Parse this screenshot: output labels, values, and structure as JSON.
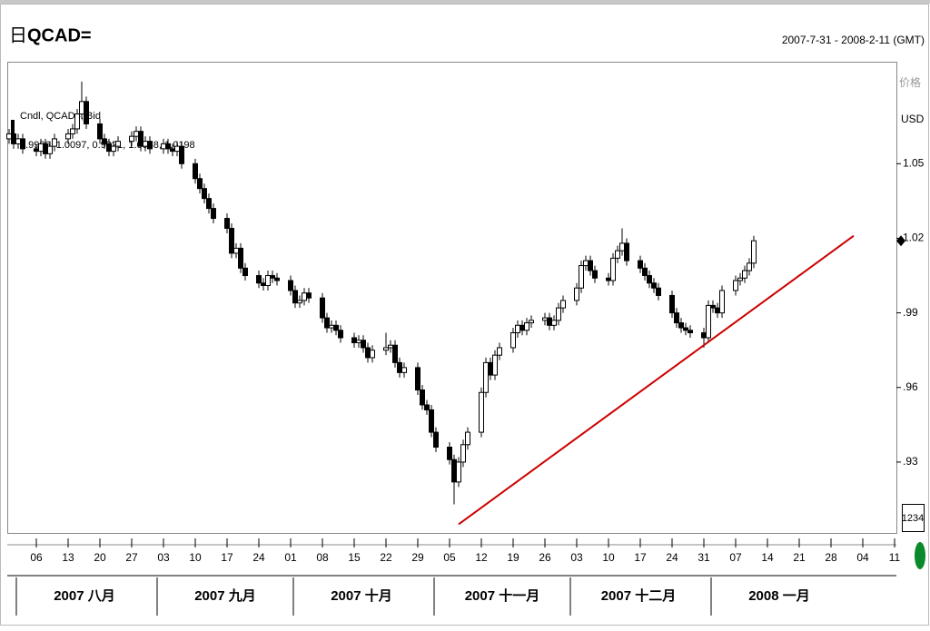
{
  "chart_data": {
    "type": "candlestick",
    "title": "QCAD=",
    "title_icon": "日",
    "date_range": "2007-7-31 - 2008-2-11 (GMT)",
    "legend_title": "Cndl, QCAD=, Bid",
    "legend_values": "0.9986, 1.0097, 0.9921, 1.0058, 1.0198",
    "y_axis_label": "价格",
    "y_unit": "USD",
    "scale_button": "1234",
    "up_color": "#ffffff",
    "down_color": "#000000",
    "xlim": [
      "2007-07-31",
      "2008-02-11"
    ],
    "ylim": [
      0.9015,
      1.091
    ],
    "yticks": [
      1.05,
      1.02,
      {
        "value": 0.99,
        "label": ".99"
      },
      {
        "value": 0.96,
        "label": ".96"
      },
      {
        "value": 0.93,
        "label": ".93"
      }
    ],
    "xticks": [
      {
        "value": "2007-08-06",
        "label": "06"
      },
      {
        "value": "2007-08-13",
        "label": "13"
      },
      {
        "value": "2007-08-20",
        "label": "20"
      },
      {
        "value": "2007-08-27",
        "label": "27"
      },
      {
        "value": "2007-09-03",
        "label": "03"
      },
      {
        "value": "2007-09-10",
        "label": "10"
      },
      {
        "value": "2007-09-17",
        "label": "17"
      },
      {
        "value": "2007-09-24",
        "label": "24"
      },
      {
        "value": "2007-10-01",
        "label": "01"
      },
      {
        "value": "2007-10-08",
        "label": "08"
      },
      {
        "value": "2007-10-15",
        "label": "15"
      },
      {
        "value": "2007-10-22",
        "label": "22"
      },
      {
        "value": "2007-10-29",
        "label": "29"
      },
      {
        "value": "2007-11-05",
        "label": "05"
      },
      {
        "value": "2007-11-12",
        "label": "12"
      },
      {
        "value": "2007-11-19",
        "label": "19"
      },
      {
        "value": "2007-11-26",
        "label": "26"
      },
      {
        "value": "2007-12-03",
        "label": "03"
      },
      {
        "value": "2007-12-10",
        "label": "10"
      },
      {
        "value": "2007-12-17",
        "label": "17"
      },
      {
        "value": "2007-12-24",
        "label": "24"
      },
      {
        "value": "2007-12-31",
        "label": "31"
      },
      {
        "value": "2008-01-07",
        "label": "07"
      },
      {
        "value": "2008-01-14",
        "label": "14"
      },
      {
        "value": "2008-01-21",
        "label": "21"
      },
      {
        "value": "2008-01-28",
        "label": "28"
      },
      {
        "value": "2008-02-04",
        "label": "04"
      },
      {
        "value": "2008-02-11",
        "label": "11"
      }
    ],
    "months": [
      {
        "value": "2007-08-01",
        "label": "2007 八月"
      },
      {
        "value": "2007-09-01",
        "label": "2007 九月"
      },
      {
        "value": "2007-10-01",
        "label": "2007 十月"
      },
      {
        "value": "2007-11-01",
        "label": "2007 十一月"
      },
      {
        "value": "2007-12-01",
        "label": "2007 十二月"
      },
      {
        "value": "2008-01-01",
        "label": "2008 一月"
      }
    ],
    "trendline": {
      "x": [
        "2007-11-07",
        "2008-02-02"
      ],
      "y": [
        0.905,
        1.021
      ],
      "color": "#cc0000"
    },
    "x": [
      "2007-07-31",
      "2007-08-01",
      "2007-08-02",
      "2007-08-03",
      "2007-08-06",
      "2007-08-07",
      "2007-08-08",
      "2007-08-09",
      "2007-08-10",
      "2007-08-13",
      "2007-08-14",
      "2007-08-15",
      "2007-08-16",
      "2007-08-17",
      "2007-08-20",
      "2007-08-21",
      "2007-08-22",
      "2007-08-23",
      "2007-08-24",
      "2007-08-27",
      "2007-08-28",
      "2007-08-29",
      "2007-08-30",
      "2007-08-31",
      "2007-09-03",
      "2007-09-04",
      "2007-09-05",
      "2007-09-06",
      "2007-09-07",
      "2007-09-10",
      "2007-09-11",
      "2007-09-12",
      "2007-09-13",
      "2007-09-14",
      "2007-09-17",
      "2007-09-18",
      "2007-09-19",
      "2007-09-20",
      "2007-09-21",
      "2007-09-24",
      "2007-09-25",
      "2007-09-26",
      "2007-09-27",
      "2007-09-28",
      "2007-10-01",
      "2007-10-02",
      "2007-10-03",
      "2007-10-04",
      "2007-10-05",
      "2007-10-08",
      "2007-10-09",
      "2007-10-10",
      "2007-10-11",
      "2007-10-12",
      "2007-10-15",
      "2007-10-16",
      "2007-10-17",
      "2007-10-18",
      "2007-10-19",
      "2007-10-22",
      "2007-10-23",
      "2007-10-24",
      "2007-10-25",
      "2007-10-26",
      "2007-10-29",
      "2007-10-30",
      "2007-10-31",
      "2007-11-01",
      "2007-11-02",
      "2007-11-05",
      "2007-11-06",
      "2007-11-07",
      "2007-11-08",
      "2007-11-09",
      "2007-11-12",
      "2007-11-13",
      "2007-11-14",
      "2007-11-15",
      "2007-11-16",
      "2007-11-19",
      "2007-11-20",
      "2007-11-21",
      "2007-11-22",
      "2007-11-23",
      "2007-11-26",
      "2007-11-27",
      "2007-11-28",
      "2007-11-29",
      "2007-11-30",
      "2007-12-03",
      "2007-12-04",
      "2007-12-05",
      "2007-12-06",
      "2007-12-07",
      "2007-12-10",
      "2007-12-11",
      "2007-12-12",
      "2007-12-13",
      "2007-12-14",
      "2007-12-17",
      "2007-12-18",
      "2007-12-19",
      "2007-12-20",
      "2007-12-21",
      "2007-12-24",
      "2007-12-25",
      "2007-12-26",
      "2007-12-27",
      "2007-12-28",
      "2007-12-31",
      "2008-01-01",
      "2008-01-02",
      "2008-01-03",
      "2008-01-04",
      "2008-01-07",
      "2008-01-08",
      "2008-01-09",
      "2008-01-10",
      "2008-01-11"
    ],
    "open": [
      1.06,
      1.062,
      1.058,
      1.06,
      1.056,
      1.055,
      1.058,
      1.054,
      1.057,
      1.06,
      1.062,
      1.064,
      1.07,
      1.075,
      1.066,
      1.06,
      1.058,
      1.055,
      1.057,
      1.059,
      1.061,
      1.063,
      1.057,
      1.059,
      1.056,
      1.058,
      1.056,
      1.055,
      1.057,
      1.05,
      1.044,
      1.04,
      1.036,
      1.032,
      1.028,
      1.024,
      1.014,
      1.016,
      1.008,
      1.005,
      1.002,
      1.001,
      1.005,
      1.004,
      1.003,
      0.999,
      0.994,
      0.995,
      0.998,
      0.996,
      0.988,
      0.984,
      0.985,
      0.983,
      0.98,
      0.978,
      0.979,
      0.976,
      0.972,
      0.975,
      0.976,
      0.977,
      0.97,
      0.966,
      0.968,
      0.959,
      0.953,
      0.951,
      0.942,
      0.936,
      0.931,
      0.922,
      0.93,
      0.937,
      0.942,
      0.958,
      0.97,
      0.965,
      0.973,
      0.976,
      0.982,
      0.985,
      0.983,
      0.986,
      0.987,
      0.988,
      0.985,
      0.987,
      0.992,
      0.995,
      1.0,
      1.009,
      1.011,
      1.007,
      1.004,
      1.003,
      1.012,
      1.015,
      1.018,
      1.011,
      1.008,
      1.005,
      1.002,
      1.0,
      0.997,
      0.99,
      0.986,
      0.984,
      0.983,
      0.982,
      0.98,
      0.993,
      0.992,
      0.99,
      0.999,
      1.003,
      1.004,
      1.007,
      1.01
    ],
    "high": [
      1.064,
      1.064,
      1.062,
      1.062,
      1.058,
      1.06,
      1.06,
      1.059,
      1.062,
      1.064,
      1.066,
      1.072,
      1.083,
      1.077,
      1.068,
      1.062,
      1.06,
      1.059,
      1.061,
      1.063,
      1.065,
      1.065,
      1.061,
      1.061,
      1.06,
      1.06,
      1.058,
      1.059,
      1.059,
      1.052,
      1.046,
      1.042,
      1.038,
      1.034,
      1.03,
      1.026,
      1.018,
      1.018,
      1.01,
      1.007,
      1.004,
      1.007,
      1.007,
      1.006,
      1.005,
      1.001,
      0.997,
      1.0,
      1.0,
      0.998,
      0.99,
      0.987,
      0.987,
      0.985,
      0.982,
      0.981,
      0.981,
      0.978,
      0.977,
      0.982,
      0.979,
      0.979,
      0.972,
      0.97,
      0.97,
      0.961,
      0.955,
      0.953,
      0.944,
      0.938,
      0.933,
      0.932,
      0.939,
      0.944,
      0.96,
      0.972,
      0.972,
      0.975,
      0.978,
      0.984,
      0.987,
      0.987,
      0.988,
      0.989,
      0.99,
      0.99,
      0.989,
      0.994,
      0.997,
      1.002,
      1.011,
      1.013,
      1.013,
      1.009,
      1.006,
      1.014,
      1.017,
      1.024,
      1.02,
      1.013,
      1.01,
      1.007,
      1.004,
      1.002,
      0.999,
      0.992,
      0.988,
      0.986,
      0.985,
      0.984,
      0.995,
      0.995,
      0.994,
      1.001,
      1.005,
      1.006,
      1.009,
      1.012,
      1.021
    ],
    "low": [
      1.058,
      1.056,
      1.056,
      1.054,
      1.053,
      1.053,
      1.052,
      1.052,
      1.055,
      1.058,
      1.06,
      1.062,
      1.068,
      1.064,
      1.058,
      1.056,
      1.053,
      1.053,
      1.055,
      1.057,
      1.059,
      1.055,
      1.055,
      1.054,
      1.054,
      1.054,
      1.053,
      1.053,
      1.048,
      1.042,
      1.038,
      1.034,
      1.03,
      1.026,
      1.022,
      1.012,
      1.012,
      1.006,
      1.003,
      1.0,
      0.999,
      0.999,
      1.002,
      1.001,
      0.997,
      0.992,
      0.992,
      0.993,
      0.994,
      0.986,
      0.982,
      0.982,
      0.981,
      0.978,
      0.976,
      0.976,
      0.974,
      0.97,
      0.97,
      0.973,
      0.974,
      0.968,
      0.964,
      0.964,
      0.957,
      0.951,
      0.949,
      0.94,
      0.934,
      0.929,
      0.913,
      0.92,
      0.928,
      0.935,
      0.94,
      0.956,
      0.963,
      0.963,
      0.971,
      0.974,
      0.98,
      0.981,
      0.981,
      0.984,
      0.985,
      0.983,
      0.983,
      0.985,
      0.99,
      0.993,
      0.998,
      1.007,
      1.005,
      1.002,
      1.001,
      1.001,
      1.01,
      1.013,
      1.009,
      1.006,
      1.003,
      1.0,
      0.998,
      0.995,
      0.988,
      0.984,
      0.982,
      0.981,
      0.98,
      0.976,
      0.978,
      0.99,
      0.988,
      0.988,
      0.997,
      1.001,
      1.002,
      1.005,
      1.008
    ],
    "close": [
      1.062,
      1.058,
      1.06,
      1.056,
      1.055,
      1.058,
      1.054,
      1.057,
      1.06,
      1.062,
      1.064,
      1.07,
      1.075,
      1.066,
      1.06,
      1.058,
      1.055,
      1.057,
      1.059,
      1.061,
      1.063,
      1.057,
      1.059,
      1.056,
      1.058,
      1.056,
      1.055,
      1.057,
      1.05,
      1.044,
      1.04,
      1.036,
      1.032,
      1.028,
      1.024,
      1.014,
      1.016,
      1.008,
      1.005,
      1.002,
      1.001,
      1.005,
      1.004,
      1.003,
      0.999,
      0.994,
      0.995,
      0.998,
      0.996,
      0.988,
      0.984,
      0.985,
      0.983,
      0.98,
      0.978,
      0.979,
      0.976,
      0.972,
      0.975,
      0.976,
      0.977,
      0.97,
      0.966,
      0.968,
      0.959,
      0.953,
      0.951,
      0.942,
      0.936,
      0.931,
      0.922,
      0.93,
      0.937,
      0.942,
      0.958,
      0.97,
      0.965,
      0.973,
      0.976,
      0.982,
      0.985,
      0.983,
      0.986,
      0.987,
      0.988,
      0.985,
      0.987,
      0.992,
      0.995,
      1.0,
      1.009,
      1.011,
      1.007,
      1.004,
      1.003,
      1.012,
      1.015,
      1.018,
      1.011,
      1.008,
      1.005,
      1.002,
      1.0,
      0.997,
      0.99,
      0.986,
      0.984,
      0.983,
      0.982,
      0.98,
      0.993,
      0.992,
      0.99,
      0.999,
      1.003,
      1.004,
      1.007,
      1.01,
      1.019
    ]
  }
}
